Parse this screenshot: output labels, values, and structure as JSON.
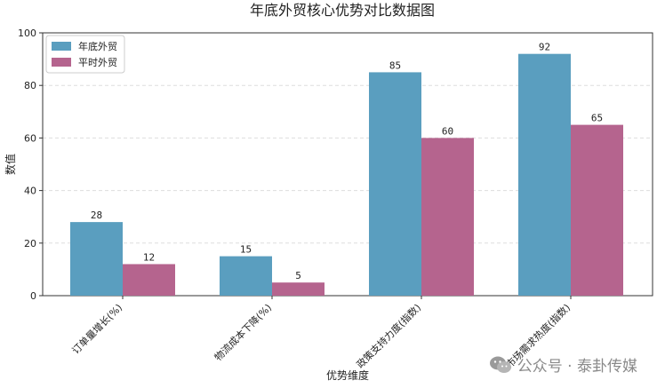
{
  "chart_data": {
    "type": "bar",
    "title": "年底外贸核心优势对比数据图",
    "xlabel": "优势维度",
    "ylabel": "数值",
    "categories": [
      "订单量增长(%)",
      "物流成本下降(%)",
      "政策支持力度(指数)",
      "市场需求热度(指数)"
    ],
    "series": [
      {
        "name": "年底外贸",
        "color": "#5a9ebf",
        "values": [
          28,
          15,
          85,
          92
        ]
      },
      {
        "name": "平时外贸",
        "color": "#b5648e",
        "values": [
          12,
          5,
          60,
          65
        ]
      }
    ],
    "ylim": [
      0,
      100
    ],
    "yticks": [
      0,
      20,
      40,
      60,
      80,
      100
    ],
    "grid": "horizontal dashed",
    "legend_position": "top-left"
  },
  "watermark": {
    "icon": "wechat-icon",
    "text": "公众号 · 泰卦传媒"
  }
}
